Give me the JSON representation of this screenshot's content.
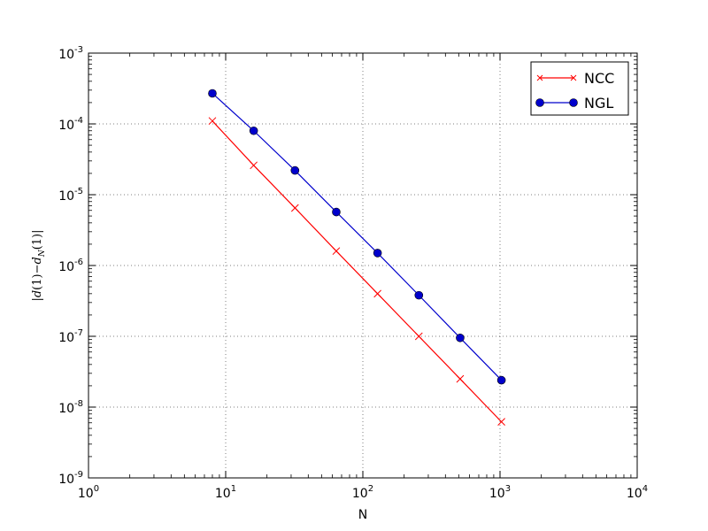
{
  "chart_data": {
    "type": "line",
    "xlabel": "N",
    "ylabel_parts": [
      "|d",
      "(1)",
      "−",
      "d",
      "N",
      "(1)|"
    ],
    "xscale": "log",
    "yscale": "log",
    "xlim": [
      1,
      10000
    ],
    "ylim": [
      1e-09,
      0.001
    ],
    "x_ticks": [
      {
        "base": "10",
        "exp": "0",
        "value": 1
      },
      {
        "base": "10",
        "exp": "1",
        "value": 10
      },
      {
        "base": "10",
        "exp": "2",
        "value": 100
      },
      {
        "base": "10",
        "exp": "3",
        "value": 1000
      },
      {
        "base": "10",
        "exp": "4",
        "value": 10000
      }
    ],
    "y_ticks": [
      {
        "base": "10",
        "exp": "-9",
        "value": 1e-09
      },
      {
        "base": "10",
        "exp": "-8",
        "value": 1e-08
      },
      {
        "base": "10",
        "exp": "-7",
        "value": 1e-07
      },
      {
        "base": "10",
        "exp": "-6",
        "value": 1e-06
      },
      {
        "base": "10",
        "exp": "-5",
        "value": 1e-05
      },
      {
        "base": "10",
        "exp": "-4",
        "value": 0.0001
      },
      {
        "base": "10",
        "exp": "-3",
        "value": 0.001
      }
    ],
    "grid": true,
    "legend_position": "top-right",
    "series": [
      {
        "name": "NCC",
        "color": "#ff0000",
        "marker": "x",
        "x": [
          8,
          16,
          32,
          64,
          128,
          256,
          512,
          1024
        ],
        "y": [
          0.00011,
          2.6e-05,
          6.5e-06,
          1.6e-06,
          4e-07,
          1e-07,
          2.5e-08,
          6.2e-09
        ]
      },
      {
        "name": "NGL",
        "color": "#0000cc",
        "marker": "circle",
        "x": [
          8,
          16,
          32,
          64,
          128,
          256,
          512,
          1024
        ],
        "y": [
          0.00027,
          8e-05,
          2.2e-05,
          5.7e-06,
          1.5e-06,
          3.8e-07,
          9.5e-08,
          2.4e-08
        ]
      }
    ]
  }
}
